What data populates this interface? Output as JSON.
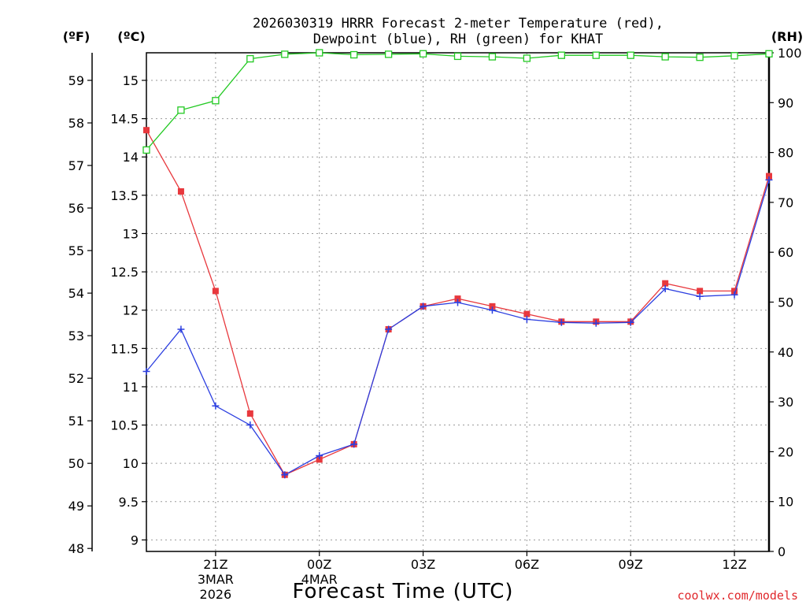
{
  "chart_data": {
    "type": "line",
    "title_line1": "2026030319 HRRR Forecast 2-meter Temperature (red),",
    "title_line2": "Dewpoint (blue), RH (green) for KHAT",
    "xlabel": "Forecast Time (UTC)",
    "credit": "coolwx.com/models",
    "unit_f": "(ºF)",
    "unit_c": "(ºC)",
    "unit_rh": "(RH)",
    "x_hours": [
      0,
      1,
      2,
      3,
      4,
      5,
      6,
      7,
      8,
      9,
      10,
      11,
      12,
      13,
      14,
      15,
      16,
      17,
      18
    ],
    "x_range": [
      0,
      18
    ],
    "x_ticks": [
      {
        "hour": 2,
        "lines": [
          "21Z",
          "3MAR",
          "2026"
        ]
      },
      {
        "hour": 5,
        "lines": [
          "00Z",
          "4MAR"
        ]
      },
      {
        "hour": 8,
        "lines": [
          "03Z"
        ]
      },
      {
        "hour": 11,
        "lines": [
          "06Z"
        ]
      },
      {
        "hour": 14,
        "lines": [
          "09Z"
        ]
      },
      {
        "hour": 17,
        "lines": [
          "12Z"
        ]
      }
    ],
    "celsius_range": [
      8.85,
      15.36
    ],
    "celsius_ticks": [
      "9",
      "9.5",
      "10",
      "10.5",
      "11",
      "11.5",
      "12",
      "12.5",
      "13",
      "13.5",
      "14",
      "14.5",
      "15"
    ],
    "fahrenheit_ticks": [
      "48",
      "49",
      "50",
      "51",
      "52",
      "53",
      "54",
      "55",
      "56",
      "57",
      "58",
      "59"
    ],
    "rh_range": [
      0,
      100
    ],
    "rh_ticks": [
      "0",
      "10",
      "20",
      "30",
      "40",
      "50",
      "60",
      "70",
      "80",
      "90",
      "100"
    ],
    "series": [
      {
        "name": "Temperature",
        "color": "#e8383d",
        "marker": "filled-square",
        "values_c": [
          14.35,
          13.55,
          12.25,
          10.65,
          9.85,
          10.05,
          10.25,
          11.75,
          12.05,
          12.15,
          12.05,
          11.95,
          11.85,
          11.85,
          11.85,
          12.35,
          12.25,
          12.25,
          13.75
        ]
      },
      {
        "name": "Dewpoint",
        "color": "#2b3ee0",
        "marker": "plus",
        "values_c": [
          11.2,
          11.75,
          10.75,
          10.5,
          9.85,
          10.1,
          10.25,
          11.75,
          12.05,
          12.1,
          12.0,
          11.88,
          11.84,
          11.83,
          11.84,
          12.28,
          12.18,
          12.2,
          13.7
        ]
      },
      {
        "name": "RH",
        "color": "#22c922",
        "marker": "open-square",
        "values_pct": [
          80.5,
          88.5,
          90.4,
          98.8,
          99.7,
          100,
          99.6,
          99.7,
          99.8,
          99.3,
          99.2,
          98.9,
          99.5,
          99.5,
          99.5,
          99.2,
          99.1,
          99.4,
          99.8
        ]
      }
    ]
  }
}
